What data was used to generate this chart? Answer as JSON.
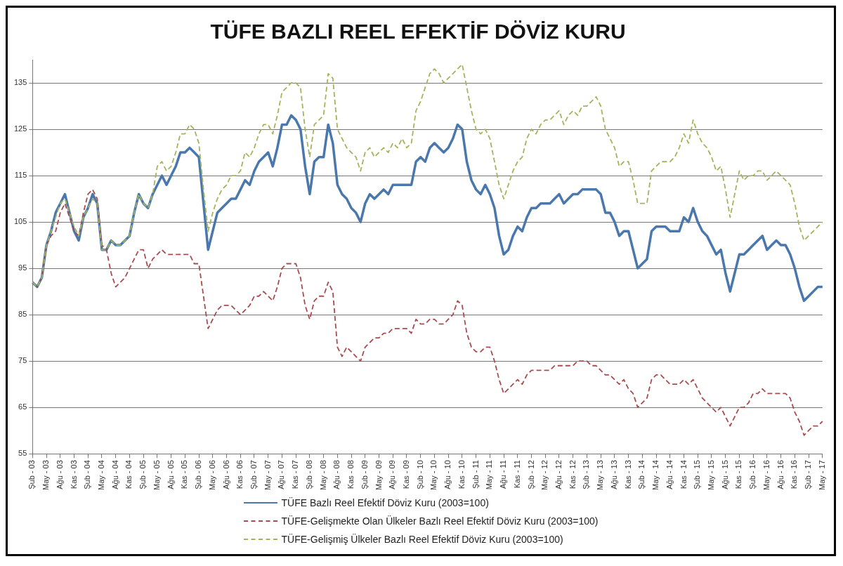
{
  "chart_data": {
    "type": "line",
    "title": "TÜFE BAZLI REEL EFEKTİF DÖVİZ KURU",
    "categories": [
      "Şub - 03",
      null,
      null,
      "May - 03",
      null,
      null,
      "Ağu - 03",
      null,
      null,
      "Kas - 03",
      null,
      null,
      "Şub - 04",
      null,
      null,
      "May - 04",
      null,
      null,
      "Ağu - 04",
      null,
      null,
      "Kas - 04",
      null,
      null,
      "Şub - 05",
      null,
      null,
      "May - 05",
      null,
      null,
      "Ağu - 05",
      null,
      null,
      "Kas - 05",
      null,
      null,
      "Şub - 06",
      null,
      null,
      "May - 06",
      null,
      null,
      "Ağu - 06",
      null,
      null,
      "Kas - 06",
      null,
      null,
      "Şub - 07",
      null,
      null,
      "May - 07",
      null,
      null,
      "Ağu - 07",
      null,
      null,
      "Kas - 07",
      null,
      null,
      "Şub - 08",
      null,
      null,
      "May - 08",
      null,
      null,
      "Ağu - 08",
      null,
      null,
      "Kas - 08",
      null,
      null,
      "Şub - 09",
      null,
      null,
      "May - 09",
      null,
      null,
      "Ağu - 09",
      null,
      null,
      "Kas - 09",
      null,
      null,
      "Şub - 10",
      null,
      null,
      "May - 10",
      null,
      null,
      "Ağu - 10",
      null,
      null,
      "Kas - 10",
      null,
      null,
      "Şub - 11",
      null,
      null,
      "May - 11",
      null,
      null,
      "Ağu - 11",
      null,
      null,
      "Kas - 11",
      null,
      null,
      "Şub - 12",
      null,
      null,
      "May - 12",
      null,
      null,
      "Ağu - 12",
      null,
      null,
      "Kas - 12",
      null,
      null,
      "Şub - 13",
      null,
      null,
      "May - 13",
      null,
      null,
      "Ağu - 13",
      null,
      null,
      "Kas - 13",
      null,
      null,
      "Şub - 14",
      null,
      null,
      "May - 14",
      null,
      null,
      "Ağu - 14",
      null,
      null,
      "Kas - 14",
      null,
      null,
      "Şub - 15",
      null,
      null,
      "May - 15",
      null,
      null,
      "Ağu - 15",
      null,
      null,
      "Kas - 15",
      null,
      null,
      "Şub - 16",
      null,
      null,
      "May - 16",
      null,
      null,
      "Ağu - 16",
      null,
      null,
      "Kas - 16",
      null,
      null,
      "Şub - 17",
      null,
      null,
      "May - 17"
    ],
    "series": [
      {
        "name": "TÜFE  Bazlı Reel Efektif Döviz Kuru (2003=100)",
        "color": "#4a78ad",
        "line_style": "solid",
        "values": [
          92,
          91,
          93,
          100,
          103,
          107,
          109,
          111,
          107,
          103,
          101,
          106,
          108,
          111,
          109,
          99,
          99,
          101,
          100,
          100,
          101,
          102,
          107,
          111,
          109,
          108,
          111,
          113,
          115,
          113,
          115,
          117,
          120,
          120,
          121,
          120,
          119,
          109,
          99,
          103,
          107,
          108,
          109,
          110,
          110,
          112,
          114,
          113,
          116,
          118,
          119,
          120,
          117,
          121,
          126,
          126,
          128,
          127,
          125,
          117,
          111,
          118,
          119,
          119,
          126,
          122,
          113,
          111,
          110,
          108,
          107,
          105,
          109,
          111,
          110,
          111,
          112,
          111,
          113,
          113,
          113,
          113,
          113,
          118,
          119,
          118,
          121,
          122,
          121,
          120,
          121,
          123,
          126,
          125,
          118,
          114,
          112,
          111,
          113,
          111,
          108,
          102,
          98,
          99,
          102,
          104,
          103,
          106,
          108,
          108,
          109,
          109,
          109,
          110,
          111,
          109,
          110,
          111,
          111,
          112,
          112,
          112,
          112,
          111,
          107,
          107,
          105,
          102,
          103,
          103,
          99,
          95,
          96,
          97,
          103,
          104,
          104,
          104,
          103,
          103,
          103,
          106,
          105,
          108,
          105,
          103,
          102,
          100,
          98,
          99,
          94,
          90,
          94,
          98,
          98,
          99,
          100,
          101,
          102,
          99,
          100,
          101,
          100,
          100,
          98,
          95,
          91,
          88,
          89,
          90,
          91,
          91
        ]
      },
      {
        "name": "TÜFE-Gelişmekte Olan Ülkeler Bazlı Reel Efektif Döviz Kuru (2003=100)",
        "color": "#a84c50",
        "line_style": "dashed",
        "values": [
          92,
          91,
          93,
          100,
          102,
          103,
          107,
          109,
          106,
          103,
          102,
          107,
          111,
          112,
          110,
          100,
          99,
          94,
          91,
          92,
          93,
          95,
          97,
          99,
          99,
          95,
          97,
          98,
          99,
          98,
          98,
          98,
          98,
          98,
          98,
          96,
          96,
          89,
          82,
          84,
          86,
          87,
          87,
          87,
          86,
          85,
          86,
          87,
          89,
          89,
          90,
          89,
          88,
          91,
          95,
          96,
          96,
          96,
          93,
          87,
          84,
          88,
          89,
          89,
          92,
          90,
          78,
          76,
          78,
          77,
          76,
          75,
          78,
          79,
          80,
          80,
          81,
          81,
          82,
          82,
          82,
          82,
          81,
          84,
          83,
          83,
          84,
          84,
          83,
          83,
          84,
          85,
          88,
          87,
          81,
          78,
          77,
          77,
          78,
          78,
          75,
          71,
          68,
          69,
          70,
          71,
          70,
          72,
          73,
          73,
          73,
          73,
          73,
          74,
          74,
          74,
          74,
          74,
          75,
          75,
          75,
          74,
          74,
          73,
          72,
          72,
          71,
          70,
          71,
          69,
          68,
          65,
          66,
          67,
          71,
          72,
          72,
          71,
          70,
          70,
          70,
          71,
          70,
          71,
          69,
          67,
          66,
          65,
          64,
          65,
          63,
          61,
          63,
          65,
          65,
          66,
          68,
          68,
          69,
          68,
          68,
          68,
          68,
          68,
          67,
          64,
          62,
          59,
          60,
          61,
          61,
          62
        ]
      },
      {
        "name": "TÜFE-Gelişmiş Ülkeler Bazlı Reel Efektif Döviz Kuru (2003=100)",
        "color": "#a4b45c",
        "line_style": "dashed",
        "values": [
          92,
          91,
          93,
          100,
          103,
          106,
          109,
          110,
          107,
          104,
          102,
          106,
          108,
          110,
          109,
          99,
          99,
          101,
          100,
          100,
          101,
          102,
          107,
          111,
          109,
          108,
          111,
          117,
          118,
          116,
          117,
          120,
          124,
          124,
          126,
          125,
          122,
          112,
          103,
          107,
          110,
          112,
          113,
          115,
          115,
          116,
          120,
          119,
          121,
          124,
          126,
          126,
          124,
          128,
          133,
          134,
          135,
          135,
          134,
          125,
          119,
          126,
          127,
          128,
          137,
          136,
          125,
          123,
          121,
          120,
          119,
          116,
          120,
          121,
          119,
          120,
          121,
          120,
          122,
          121,
          123,
          121,
          122,
          129,
          131,
          134,
          137,
          138,
          137,
          135,
          136,
          137,
          138,
          139,
          134,
          129,
          125,
          124,
          125,
          123,
          118,
          113,
          110,
          113,
          116,
          118,
          119,
          123,
          125,
          124,
          126,
          127,
          127,
          128,
          129,
          126,
          128,
          129,
          128,
          130,
          130,
          131,
          132,
          130,
          125,
          123,
          121,
          117,
          118,
          118,
          114,
          109,
          109,
          109,
          116,
          117,
          118,
          118,
          118,
          119,
          121,
          124,
          122,
          127,
          124,
          122,
          121,
          119,
          116,
          117,
          112,
          106,
          111,
          116,
          114,
          115,
          115,
          116,
          116,
          114,
          115,
          116,
          115,
          114,
          113,
          109,
          104,
          101,
          102,
          103,
          104,
          105
        ]
      }
    ],
    "ylim": [
      55,
      140
    ],
    "yticks": [
      55,
      65,
      75,
      85,
      95,
      105,
      115,
      125,
      135
    ],
    "grid": "y",
    "legend": "bottom",
    "marker": "none"
  }
}
